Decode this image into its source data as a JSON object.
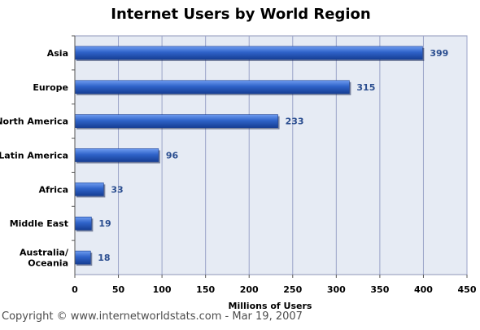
{
  "chart_data": {
    "type": "bar",
    "orientation": "horizontal",
    "title": "Internet Users by World Region",
    "xlabel": "Millions of Users",
    "ylabel": "",
    "categories": [
      [
        "Asia"
      ],
      [
        "Europe"
      ],
      [
        "North America"
      ],
      [
        "Latin America"
      ],
      [
        "Africa"
      ],
      [
        "Middle East"
      ],
      [
        "Australia/",
        "Oceania"
      ]
    ],
    "values": [
      399,
      315,
      233,
      96,
      33,
      19,
      18
    ],
    "data_labels": [
      "399",
      "315",
      "233",
      "96",
      "33",
      "19",
      "18"
    ],
    "xlim": [
      0,
      450
    ],
    "xticks": [
      0,
      50,
      100,
      150,
      200,
      250,
      300,
      350,
      400,
      450
    ],
    "grid": "vertical",
    "legend": "none",
    "colors": {
      "bar": "#2f63c9",
      "bar_dark": "#163e94",
      "bar_light": "#6f9cf0",
      "plot_bg": "#e6ebf4",
      "grid": "#9aa3c8",
      "value_label": "#2a4d8f"
    }
  },
  "footer": {
    "copyright": "Copyright © www.internetworldstats.com - Mar 19, 2007"
  }
}
